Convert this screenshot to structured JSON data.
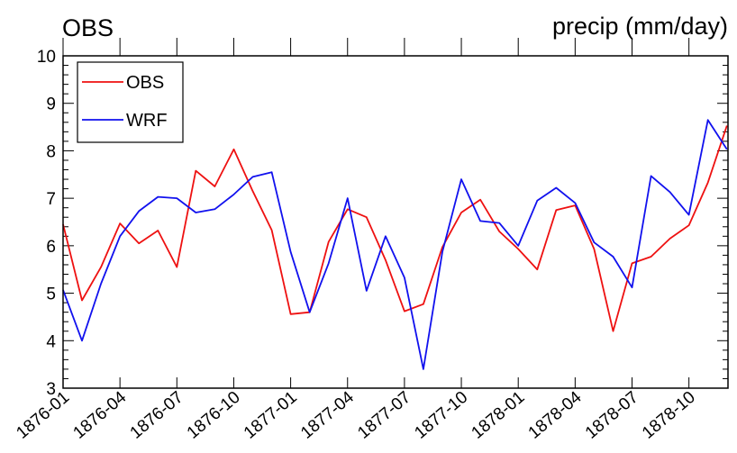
{
  "chart_data": {
    "type": "line",
    "title_left": "OBS",
    "title_right": "precip (mm/day)",
    "xlabel": "",
    "ylabel": "",
    "ylim": [
      3,
      10
    ],
    "yticks": [
      "3",
      "4",
      "5",
      "6",
      "7",
      "8",
      "9",
      "10"
    ],
    "grid": false,
    "legend_position": "top-left",
    "x": [
      "1876-01",
      "1876-02",
      "1876-03",
      "1876-04",
      "1876-05",
      "1876-06",
      "1876-07",
      "1876-08",
      "1876-09",
      "1876-10",
      "1876-11",
      "1876-12",
      "1877-01",
      "1877-02",
      "1877-03",
      "1877-04",
      "1877-05",
      "1877-06",
      "1877-07",
      "1877-08",
      "1877-09",
      "1877-10",
      "1877-11",
      "1877-12",
      "1878-01",
      "1878-02",
      "1878-03",
      "1878-04",
      "1878-05",
      "1878-06",
      "1878-07",
      "1878-08",
      "1878-09",
      "1878-10",
      "1878-11",
      "1878-12"
    ],
    "xtick_labels": [
      "1876-01",
      "1876-04",
      "1876-07",
      "1876-10",
      "1877-01",
      "1877-04",
      "1877-07",
      "1877-10",
      "1878-01",
      "1878-04",
      "1878-07",
      "1878-10"
    ],
    "series": [
      {
        "name": "OBS",
        "color": "#ee1111",
        "values": [
          6.45,
          4.85,
          5.55,
          6.47,
          6.05,
          6.32,
          5.55,
          7.58,
          7.25,
          8.03,
          7.15,
          6.33,
          4.56,
          4.6,
          6.08,
          6.77,
          6.6,
          5.7,
          4.62,
          4.77,
          5.97,
          6.7,
          6.97,
          6.3,
          5.93,
          5.5,
          6.75,
          6.85,
          5.93,
          4.2,
          5.63,
          5.77,
          6.15,
          6.43,
          7.33,
          8.53
        ]
      },
      {
        "name": "WRF",
        "color": "#1111ee",
        "values": [
          5.07,
          4.0,
          5.2,
          6.2,
          6.73,
          7.03,
          7.0,
          6.7,
          6.77,
          7.08,
          7.45,
          7.55,
          5.87,
          4.6,
          5.63,
          7.0,
          5.05,
          6.2,
          5.33,
          3.4,
          5.87,
          7.4,
          6.52,
          6.48,
          6.0,
          6.95,
          7.22,
          6.9,
          6.07,
          5.77,
          5.12,
          7.47,
          7.13,
          6.65,
          8.65,
          8.03
        ]
      }
    ]
  }
}
